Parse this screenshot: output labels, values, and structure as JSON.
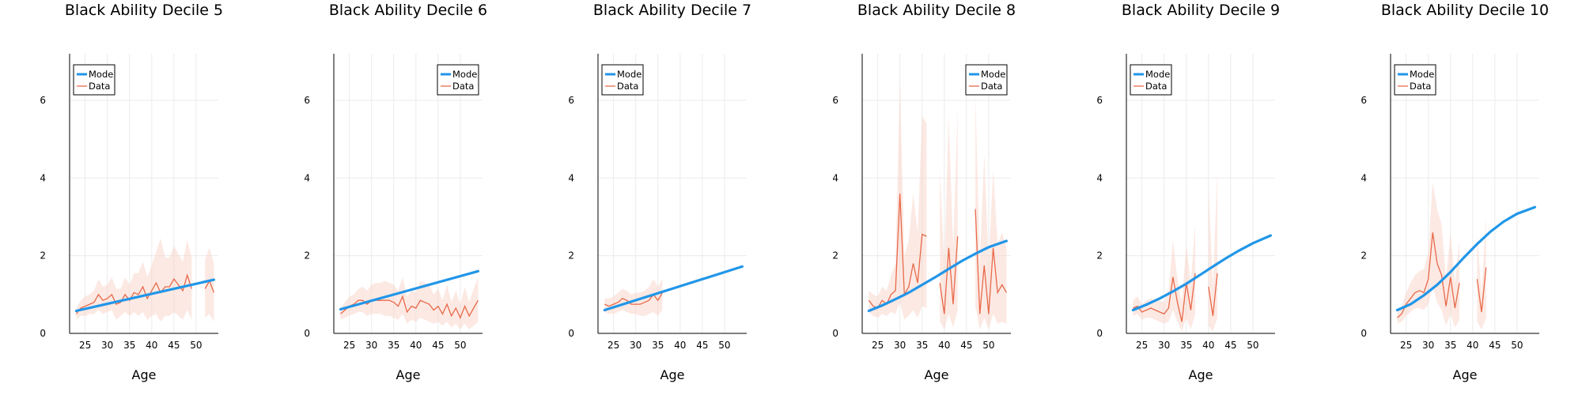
{
  "colors": {
    "model": "#2196e8",
    "data": "#e8694a",
    "band": "#f8cfc2",
    "axis": "#000000",
    "grid": "#ebebeb"
  },
  "chart_data": [
    {
      "type": "line",
      "title": "Black Ability Decile 5",
      "xlabel": "Age",
      "ylabel": "",
      "xlim": [
        21.5,
        55
      ],
      "ylim": [
        0,
        7.2
      ],
      "xticks": [
        25,
        30,
        35,
        40,
        45,
        50
      ],
      "yticks": [
        0,
        2,
        4,
        6
      ],
      "grid": true,
      "legend_position": "top-left",
      "series": [
        {
          "name": "Model",
          "x": [
            23,
            54
          ],
          "y": [
            0.58,
            1.38
          ]
        },
        {
          "name": "Data",
          "x": [
            23,
            24,
            25,
            26,
            27,
            28,
            29,
            30,
            31,
            32,
            33,
            34,
            35,
            36,
            37,
            38,
            39,
            40,
            41,
            42,
            43,
            44,
            45,
            46,
            47,
            48,
            49,
            50,
            51,
            52,
            53,
            54
          ],
          "y": [
            0.5,
            0.65,
            0.7,
            0.75,
            0.8,
            1.0,
            0.85,
            0.9,
            1.0,
            0.75,
            0.8,
            1.0,
            0.85,
            1.05,
            1.0,
            1.2,
            0.9,
            1.1,
            1.3,
            1.05,
            1.2,
            1.2,
            1.4,
            1.25,
            1.1,
            1.5,
            1.15,
            null,
            null,
            1.15,
            1.35,
            1.05
          ],
          "y_lower": [
            0.35,
            0.45,
            0.45,
            0.5,
            0.5,
            0.6,
            0.5,
            0.55,
            0.6,
            0.35,
            0.45,
            0.55,
            0.45,
            0.55,
            0.45,
            0.55,
            0.35,
            0.45,
            0.5,
            0.3,
            0.45,
            0.45,
            0.55,
            0.45,
            0.35,
            0.6,
            0.35,
            null,
            null,
            0.4,
            0.5,
            0.3
          ],
          "y_upper": [
            0.65,
            0.85,
            0.95,
            1.0,
            1.1,
            1.4,
            1.2,
            1.25,
            1.45,
            1.15,
            1.15,
            1.45,
            1.25,
            1.55,
            1.55,
            1.85,
            1.45,
            1.75,
            2.1,
            2.45,
            1.95,
            1.95,
            2.25,
            2.05,
            1.85,
            2.4,
            1.95,
            null,
            null,
            1.9,
            2.2,
            1.8
          ]
        }
      ]
    },
    {
      "type": "line",
      "title": "Black Ability Decile 6",
      "xlabel": "Age",
      "ylabel": "",
      "xlim": [
        21.5,
        55
      ],
      "ylim": [
        0,
        7.2
      ],
      "xticks": [
        25,
        30,
        35,
        40,
        45,
        50
      ],
      "yticks": [
        0,
        2,
        4,
        6
      ],
      "grid": true,
      "legend_position": "top-right",
      "series": [
        {
          "name": "Model",
          "x": [
            23,
            54
          ],
          "y": [
            0.62,
            1.6
          ]
        },
        {
          "name": "Data",
          "x": [
            23,
            24,
            25,
            26,
            27,
            28,
            29,
            30,
            31,
            32,
            33,
            34,
            35,
            36,
            37,
            38,
            39,
            40,
            41,
            42,
            43,
            44,
            45,
            46,
            47,
            48,
            49,
            50,
            51,
            52,
            53,
            54
          ],
          "y": [
            0.5,
            0.6,
            0.7,
            0.75,
            0.85,
            0.85,
            0.75,
            0.85,
            0.85,
            0.85,
            0.85,
            0.85,
            0.8,
            0.7,
            0.95,
            0.55,
            0.7,
            0.65,
            0.85,
            0.8,
            0.75,
            0.6,
            0.7,
            0.5,
            0.75,
            0.45,
            0.65,
            0.4,
            0.7,
            0.45,
            0.65,
            0.85
          ],
          "y_lower": [
            0.35,
            0.4,
            0.45,
            0.5,
            0.55,
            0.55,
            0.45,
            0.5,
            0.5,
            0.5,
            0.45,
            0.45,
            0.4,
            0.35,
            0.5,
            0.25,
            0.35,
            0.3,
            0.4,
            0.35,
            0.3,
            0.25,
            0.3,
            0.2,
            0.3,
            0.15,
            0.25,
            0.1,
            0.25,
            0.1,
            0.2,
            0.3
          ],
          "y_upper": [
            0.65,
            0.8,
            0.95,
            1.0,
            1.15,
            1.2,
            1.1,
            1.25,
            1.3,
            1.3,
            1.35,
            1.3,
            1.25,
            1.1,
            1.45,
            0.95,
            1.1,
            1.05,
            1.35,
            1.3,
            1.25,
            1.0,
            1.15,
            0.85,
            1.25,
            0.8,
            1.1,
            0.75,
            1.2,
            0.8,
            1.15,
            1.45
          ]
        }
      ]
    },
    {
      "type": "line",
      "title": "Black Ability Decile 7",
      "xlabel": "Age",
      "ylabel": "",
      "xlim": [
        21.5,
        55
      ],
      "ylim": [
        0,
        7.2
      ],
      "xticks": [
        25,
        30,
        35,
        40,
        45,
        50
      ],
      "yticks": [
        0,
        2,
        4,
        6
      ],
      "grid": true,
      "legend_position": "top-left",
      "series": [
        {
          "name": "Model",
          "x": [
            23,
            54
          ],
          "y": [
            0.6,
            1.72
          ]
        },
        {
          "name": "Data",
          "x": [
            23,
            24,
            25,
            26,
            27,
            28,
            29,
            30,
            31,
            32,
            33,
            34,
            35,
            36
          ],
          "y": [
            0.75,
            0.7,
            0.75,
            0.8,
            0.9,
            0.85,
            0.75,
            0.75,
            0.75,
            0.8,
            0.85,
            1.0,
            0.85,
            1.05
          ],
          "y_lower": [
            0.55,
            0.5,
            0.5,
            0.55,
            0.6,
            0.55,
            0.5,
            0.5,
            0.45,
            0.45,
            0.5,
            0.55,
            0.45,
            0.6
          ],
          "y_upper": [
            0.9,
            0.9,
            0.95,
            1.05,
            1.15,
            1.1,
            1.0,
            1.05,
            1.05,
            1.1,
            1.2,
            1.4,
            1.2,
            1.4
          ]
        }
      ]
    },
    {
      "type": "line",
      "title": "Black Ability Decile 8",
      "xlabel": "Age",
      "ylabel": "",
      "xlim": [
        21.5,
        55
      ],
      "ylim": [
        0,
        7.2
      ],
      "xticks": [
        25,
        30,
        35,
        40,
        45,
        50
      ],
      "yticks": [
        0,
        2,
        4,
        6
      ],
      "grid": true,
      "legend_position": "top-right",
      "series": [
        {
          "name": "Model",
          "x": [
            23,
            26,
            29,
            32,
            35,
            38,
            41,
            44,
            47,
            50,
            54
          ],
          "y": [
            0.58,
            0.72,
            0.88,
            1.05,
            1.25,
            1.45,
            1.66,
            1.87,
            2.05,
            2.22,
            2.38
          ]
        },
        {
          "name": "Data",
          "x": [
            23,
            24,
            25,
            26,
            27,
            28,
            29,
            30,
            31,
            32,
            33,
            34,
            35,
            36,
            37,
            38,
            39,
            40,
            41,
            42,
            43,
            44,
            45,
            46,
            47,
            48,
            49,
            50,
            51,
            52,
            53,
            54
          ],
          "y": [
            0.85,
            0.7,
            0.65,
            0.85,
            0.75,
            1.0,
            1.1,
            3.6,
            1.0,
            1.2,
            1.8,
            1.3,
            2.55,
            2.5,
            null,
            null,
            1.3,
            0.5,
            2.2,
            0.75,
            2.5,
            null,
            null,
            null,
            3.2,
            0.5,
            1.75,
            0.5,
            2.2,
            1.05,
            1.25,
            1.05
          ],
          "y_lower": [
            0.55,
            0.45,
            0.4,
            0.5,
            0.45,
            0.55,
            0.5,
            0.8,
            0.35,
            0.45,
            0.6,
            0.4,
            0.7,
            0.65,
            null,
            null,
            0.3,
            0.1,
            0.5,
            0.15,
            0.6,
            null,
            null,
            null,
            0.7,
            0.1,
            0.4,
            0.1,
            0.5,
            0.25,
            0.3,
            0.25
          ],
          "y_upper": [
            1.1,
            1.0,
            0.95,
            1.2,
            1.1,
            1.5,
            1.8,
            6.5,
            2.0,
            2.4,
            3.6,
            2.6,
            5.6,
            5.4,
            null,
            null,
            4.2,
            1.8,
            5.6,
            2.2,
            5.8,
            null,
            null,
            null,
            6.2,
            1.8,
            4.6,
            1.8,
            4.2,
            2.3,
            2.6,
            2.2
          ]
        }
      ]
    },
    {
      "type": "line",
      "title": "Black Ability Decile 9",
      "xlabel": "Age",
      "ylabel": "",
      "xlim": [
        21.5,
        55
      ],
      "ylim": [
        0,
        7.2
      ],
      "xticks": [
        25,
        30,
        35,
        40,
        45,
        50
      ],
      "yticks": [
        0,
        2,
        4,
        6
      ],
      "grid": true,
      "legend_position": "top-left",
      "series": [
        {
          "name": "Model",
          "x": [
            23,
            26,
            29,
            32,
            35,
            38,
            41,
            44,
            47,
            50,
            54
          ],
          "y": [
            0.6,
            0.74,
            0.9,
            1.08,
            1.28,
            1.5,
            1.72,
            1.94,
            2.14,
            2.32,
            2.52
          ]
        },
        {
          "name": "Data",
          "x": [
            23,
            24,
            25,
            26,
            27,
            28,
            29,
            30,
            31,
            32,
            33,
            34,
            35,
            36,
            37,
            38,
            39,
            40,
            41,
            42
          ],
          "y": [
            0.65,
            0.7,
            0.55,
            0.6,
            0.65,
            0.6,
            0.55,
            0.5,
            0.65,
            1.45,
            0.8,
            0.3,
            1.3,
            0.6,
            1.55,
            null,
            null,
            1.2,
            0.45,
            1.55
          ],
          "y_lower": [
            0.45,
            0.5,
            0.35,
            0.4,
            0.4,
            0.35,
            0.3,
            0.25,
            0.3,
            0.6,
            0.3,
            0.05,
            0.4,
            0.1,
            0.5,
            null,
            null,
            0.2,
            0.05,
            0.4
          ],
          "y_upper": [
            0.85,
            0.95,
            0.75,
            0.85,
            0.9,
            0.85,
            0.85,
            0.8,
            1.1,
            2.4,
            1.4,
            0.8,
            2.3,
            1.3,
            2.8,
            null,
            null,
            3.8,
            1.2,
            4.2
          ]
        }
      ]
    },
    {
      "type": "line",
      "title": "Black Ability Decile 10",
      "xlabel": "Age",
      "ylabel": "",
      "xlim": [
        21.5,
        55
      ],
      "ylim": [
        0,
        7.2
      ],
      "xticks": [
        25,
        30,
        35,
        40,
        45,
        50
      ],
      "yticks": [
        0,
        2,
        4,
        6
      ],
      "grid": true,
      "legend_position": "top-left",
      "series": [
        {
          "name": "Model",
          "x": [
            23,
            26,
            29,
            32,
            35,
            38,
            41,
            44,
            47,
            50,
            54
          ],
          "y": [
            0.6,
            0.75,
            0.98,
            1.25,
            1.58,
            1.95,
            2.3,
            2.62,
            2.88,
            3.08,
            3.25
          ]
        },
        {
          "name": "Data",
          "x": [
            23,
            24,
            25,
            26,
            27,
            28,
            29,
            30,
            31,
            32,
            33,
            34,
            35,
            36,
            37,
            38,
            39,
            40,
            41,
            42,
            43
          ],
          "y": [
            0.4,
            0.5,
            0.75,
            0.9,
            1.05,
            1.1,
            1.05,
            1.4,
            2.6,
            1.8,
            1.5,
            0.7,
            1.45,
            0.65,
            1.3,
            null,
            null,
            null,
            1.4,
            0.55,
            1.7
          ],
          "y_lower": [
            0.25,
            0.3,
            0.45,
            0.55,
            0.65,
            0.65,
            0.6,
            0.75,
            1.2,
            0.8,
            0.6,
            0.2,
            0.5,
            0.15,
            0.35,
            null,
            null,
            null,
            0.3,
            0.1,
            0.4
          ],
          "y_upper": [
            0.55,
            0.7,
            1.05,
            1.3,
            1.5,
            1.6,
            1.65,
            2.1,
            3.9,
            3.2,
            2.8,
            1.4,
            2.6,
            1.3,
            2.4,
            null,
            null,
            null,
            2.6,
            1.0,
            3.0
          ]
        }
      ]
    }
  ]
}
